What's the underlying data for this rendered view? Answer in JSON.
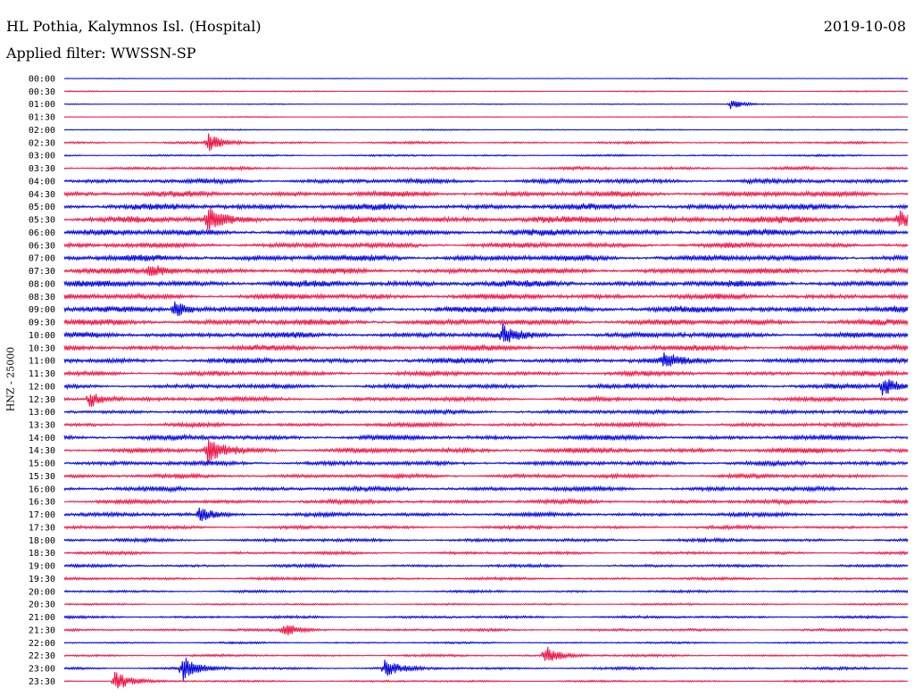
{
  "header": {
    "station": "HL Pothia, Kalymnos Isl. (Hospital)",
    "date": "2019-10-08",
    "filter": "Applied filter: WWSSN-SP"
  },
  "chart_data": {
    "type": "line",
    "title": "HL Pothia, Kalymnos Isl. (Hospital)",
    "date": "2019-10-08",
    "ylabel": "HNZ - 25000",
    "rows": [
      "00:00",
      "00:30",
      "01:00",
      "01:30",
      "02:00",
      "02:30",
      "03:00",
      "03:30",
      "04:00",
      "04:30",
      "05:00",
      "05:30",
      "06:00",
      "06:30",
      "07:00",
      "07:30",
      "08:00",
      "08:30",
      "09:00",
      "09:30",
      "10:00",
      "10:30",
      "11:00",
      "11:30",
      "12:00",
      "12:30",
      "13:00",
      "13:30",
      "14:00",
      "14:30",
      "15:00",
      "15:30",
      "16:00",
      "16:30",
      "17:00",
      "17:30",
      "18:00",
      "18:30",
      "19:00",
      "19:30",
      "20:00",
      "20:30",
      "21:00",
      "21:30",
      "22:00",
      "22:30",
      "23:00",
      "23:30"
    ],
    "colors": [
      "#0000dd",
      "#ee1144"
    ],
    "series_amplitude": [
      0.4,
      0.6,
      0.5,
      0.5,
      0.6,
      1.2,
      1.0,
      1.6,
      2.5,
      3.0,
      3.2,
      3.6,
      3.4,
      2.8,
      3.3,
      3.0,
      3.4,
      3.0,
      3.4,
      3.2,
      3.0,
      3.0,
      2.8,
      2.5,
      2.4,
      2.3,
      2.2,
      2.2,
      2.6,
      2.8,
      2.4,
      2.2,
      2.5,
      2.2,
      2.2,
      1.8,
      1.8,
      1.6,
      1.6,
      1.4,
      1.3,
      1.0,
      1.4,
      1.4,
      1.0,
      1.2,
      1.4,
      1.0
    ],
    "events": [
      {
        "row": 2,
        "time_frac": 0.79,
        "amp": 5
      },
      {
        "row": 5,
        "time_frac": 0.17,
        "amp": 10
      },
      {
        "row": 11,
        "time_frac": 0.17,
        "amp": 12
      },
      {
        "row": 11,
        "time_frac": 0.99,
        "amp": 8
      },
      {
        "row": 15,
        "time_frac": 0.1,
        "amp": 9
      },
      {
        "row": 18,
        "time_frac": 0.13,
        "amp": 9
      },
      {
        "row": 20,
        "time_frac": 0.52,
        "amp": 10
      },
      {
        "row": 22,
        "time_frac": 0.71,
        "amp": 8
      },
      {
        "row": 24,
        "time_frac": 0.97,
        "amp": 11
      },
      {
        "row": 25,
        "time_frac": 0.03,
        "amp": 9
      },
      {
        "row": 29,
        "time_frac": 0.17,
        "amp": 13
      },
      {
        "row": 34,
        "time_frac": 0.16,
        "amp": 7
      },
      {
        "row": 43,
        "time_frac": 0.26,
        "amp": 7
      },
      {
        "row": 45,
        "time_frac": 0.57,
        "amp": 11
      },
      {
        "row": 46,
        "time_frac": 0.14,
        "amp": 14
      },
      {
        "row": 46,
        "time_frac": 0.38,
        "amp": 9
      },
      {
        "row": 47,
        "time_frac": 0.06,
        "amp": 12
      }
    ]
  }
}
